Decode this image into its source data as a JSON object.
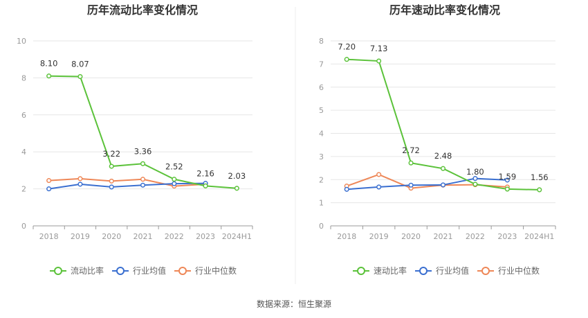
{
  "chart_data": [
    {
      "type": "line",
      "title": "历年流动比率变化情况",
      "categories": [
        "2018",
        "2019",
        "2020",
        "2021",
        "2022",
        "2023",
        "2024H1"
      ],
      "ylim": [
        0,
        10
      ],
      "yticks": [
        "0",
        "2",
        "4",
        "6",
        "8",
        "10"
      ],
      "grid": true,
      "legend_position": "bottom",
      "series": [
        {
          "name": "流动比率",
          "color": "#5bc23a",
          "values": [
            8.1,
            8.07,
            3.22,
            3.36,
            2.52,
            2.16,
            2.03
          ],
          "labels": [
            "8.10",
            "8.07",
            "3.22",
            "3.36",
            "2.52",
            "2.16",
            "2.03"
          ]
        },
        {
          "name": "行业均值",
          "color": "#3a6fd0",
          "values": [
            2.0,
            2.25,
            2.1,
            2.2,
            2.28,
            2.3,
            null
          ]
        },
        {
          "name": "行业中位数",
          "color": "#ee8757",
          "values": [
            2.45,
            2.55,
            2.42,
            2.52,
            2.15,
            2.25,
            null
          ]
        }
      ]
    },
    {
      "type": "line",
      "title": "历年速动比率变化情况",
      "categories": [
        "2018",
        "2019",
        "2020",
        "2021",
        "2022",
        "2023",
        "2024H1"
      ],
      "ylim": [
        0,
        8
      ],
      "yticks": [
        "0",
        "1",
        "2",
        "3",
        "4",
        "5",
        "6",
        "7",
        "8"
      ],
      "grid": true,
      "legend_position": "bottom",
      "series": [
        {
          "name": "速动比率",
          "color": "#5bc23a",
          "values": [
            7.2,
            7.13,
            2.72,
            2.48,
            1.8,
            1.59,
            1.56
          ],
          "labels": [
            "7.20",
            "7.13",
            "2.72",
            "2.48",
            "1.80",
            "1.59",
            "1.56"
          ]
        },
        {
          "name": "行业均值",
          "color": "#3a6fd0",
          "values": [
            1.58,
            1.68,
            1.76,
            1.77,
            2.05,
            1.98,
            null
          ]
        },
        {
          "name": "行业中位数",
          "color": "#ee8757",
          "values": [
            1.72,
            2.22,
            1.63,
            1.76,
            1.78,
            1.68,
            null
          ]
        }
      ]
    }
  ],
  "footer": {
    "source": "数据来源：恒生聚源"
  }
}
